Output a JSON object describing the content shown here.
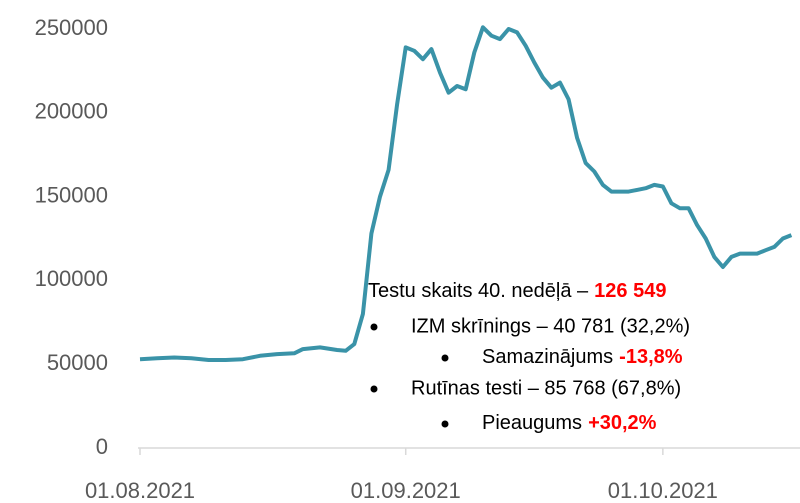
{
  "chart_data": {
    "type": "line",
    "x": [
      "01.08.2021",
      "03.08.2021",
      "05.08.2021",
      "07.08.2021",
      "09.08.2021",
      "11.08.2021",
      "13.08.2021",
      "15.08.2021",
      "17.08.2021",
      "19.08.2021",
      "20.08.2021",
      "22.08.2021",
      "24.08.2021",
      "25.08.2021",
      "26.08.2021",
      "27.08.2021",
      "28.08.2021",
      "29.08.2021",
      "30.08.2021",
      "31.08.2021",
      "01.09.2021",
      "02.09.2021",
      "03.09.2021",
      "04.09.2021",
      "05.09.2021",
      "06.09.2021",
      "07.09.2021",
      "08.09.2021",
      "09.09.2021",
      "10.09.2021",
      "11.09.2021",
      "12.09.2021",
      "13.09.2021",
      "14.09.2021",
      "15.09.2021",
      "16.09.2021",
      "17.09.2021",
      "18.09.2021",
      "19.09.2021",
      "20.09.2021",
      "21.09.2021",
      "22.09.2021",
      "23.09.2021",
      "24.09.2021",
      "25.09.2021",
      "26.09.2021",
      "27.09.2021",
      "28.09.2021",
      "29.09.2021",
      "30.09.2021",
      "01.10.2021",
      "02.10.2021",
      "03.10.2021",
      "04.10.2021",
      "05.10.2021",
      "06.10.2021",
      "07.10.2021",
      "08.10.2021",
      "09.10.2021",
      "10.10.2021",
      "11.10.2021",
      "12.10.2021",
      "13.10.2021",
      "14.10.2021",
      "15.10.2021",
      "16.10.2021"
    ],
    "series": [
      {
        "color": "#3a93a8",
        "values": [
          53000,
          53500,
          54000,
          53500,
          52500,
          52500,
          53000,
          55000,
          56000,
          56500,
          59000,
          60000,
          58500,
          58000,
          62000,
          80000,
          128000,
          150000,
          166000,
          205000,
          239000,
          237000,
          232000,
          238000,
          224000,
          212000,
          216000,
          214000,
          236000,
          251000,
          246000,
          244000,
          250000,
          248000,
          240000,
          230000,
          221000,
          215000,
          218000,
          208000,
          185000,
          170000,
          165000,
          157000,
          153000,
          153000,
          153000,
          154000,
          155000,
          157000,
          156000,
          146000,
          143000,
          143000,
          133000,
          125000,
          114000,
          108000,
          114000,
          116000,
          116000,
          116000,
          118000,
          120000,
          125000,
          127000
        ]
      }
    ],
    "xlim": [
      "01.08.2021",
      "17.10.2021"
    ],
    "xticks": [
      "01.08.2021",
      "01.09.2021",
      "01.10.2021"
    ],
    "ylim": [
      0,
      250000
    ],
    "yticks": [
      0,
      50000,
      100000,
      150000,
      200000,
      250000
    ],
    "grid": false,
    "annotation": {
      "title": "Testu skaits 40. nedēļā –",
      "title_value": "126 549",
      "items": [
        {
          "text": "IZM skrīnings – 40 781 (32,2%)",
          "sub_text": "Samazinājums",
          "sub_value": "-13,8%"
        },
        {
          "text": "Rutīnas testi – 85 768 (67,8%)",
          "sub_text": "Pieaugums",
          "sub_value": "+30,2%"
        }
      ]
    }
  }
}
